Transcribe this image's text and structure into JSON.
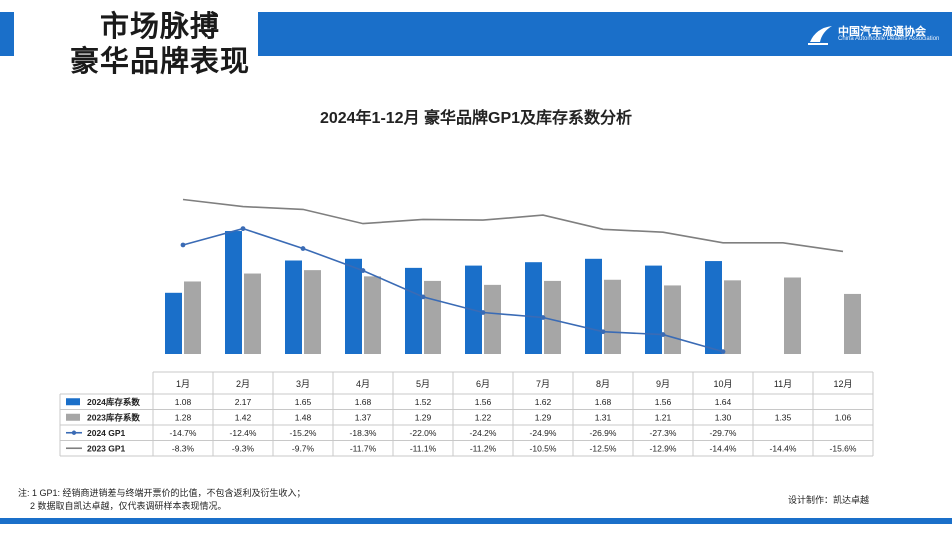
{
  "header": {
    "title_line1": "市场脉搏",
    "title_line2": "豪华品牌表现",
    "logo_cn": "中国汽车流通协会",
    "logo_en": "China Automobile Dealers Association"
  },
  "colors": {
    "accent": "#1a6fc9",
    "bar2024": "#1a6fc9",
    "bar2023": "#a6a6a6",
    "gp2024": "#3a6bb5",
    "gp2023": "#7f7f7f"
  },
  "chart_data": {
    "type": "bar+line",
    "title": "2024年1-12月 豪华品牌GP1及库存系数分析",
    "categories": [
      "1月",
      "2月",
      "3月",
      "4月",
      "5月",
      "6月",
      "7月",
      "8月",
      "9月",
      "10月",
      "11月",
      "12月"
    ],
    "bar_series": [
      {
        "name": "2024库存系数",
        "values": [
          1.08,
          2.17,
          1.65,
          1.68,
          1.52,
          1.56,
          1.62,
          1.68,
          1.56,
          1.64,
          null,
          null
        ],
        "labels": [
          "1.08",
          "2.17",
          "1.65",
          "1.68",
          "1.52",
          "1.56",
          "1.62",
          "1.68",
          "1.56",
          "1.64",
          "",
          ""
        ]
      },
      {
        "name": "2023库存系数",
        "values": [
          1.28,
          1.42,
          1.48,
          1.37,
          1.29,
          1.22,
          1.29,
          1.31,
          1.21,
          1.3,
          1.35,
          1.06
        ],
        "labels": [
          "1.28",
          "1.42",
          "1.48",
          "1.37",
          "1.29",
          "1.22",
          "1.29",
          "1.31",
          "1.21",
          "1.30",
          "1.35",
          "1.06"
        ]
      }
    ],
    "line_series": [
      {
        "name": "2024 GP1",
        "values": [
          -14.7,
          -12.4,
          -15.2,
          -18.3,
          -22.0,
          -24.2,
          -24.9,
          -26.9,
          -27.3,
          -29.7,
          null,
          null
        ],
        "labels": [
          "-14.7%",
          "-12.4%",
          "-15.2%",
          "-18.3%",
          "-22.0%",
          "-24.2%",
          "-24.9%",
          "-26.9%",
          "-27.3%",
          "-29.7%",
          "",
          ""
        ],
        "markers": true
      },
      {
        "name": "2023 GP1",
        "values": [
          -8.3,
          -9.3,
          -9.7,
          -11.7,
          -11.1,
          -11.2,
          -10.5,
          -12.5,
          -12.9,
          -14.4,
          -14.4,
          -15.6
        ],
        "labels": [
          "-8.3%",
          "-9.3%",
          "-9.7%",
          "-11.7%",
          "-11.1%",
          "-11.2%",
          "-10.5%",
          "-12.5%",
          "-12.9%",
          "-14.4%",
          "-14.4%",
          "-15.6%"
        ],
        "markers": false
      }
    ],
    "bar_axis_range": [
      0,
      2.4
    ],
    "line_axis_range": [
      -32,
      -5
    ],
    "legend": "data-table",
    "grid": false
  },
  "footnote": {
    "line1": "注: 1 GP1: 经销商进销差与终端开票价的比值，不包含返利及衍生收入；",
    "line2": "2 数据取自凯达卓越，仅代表调研样本表现情况。"
  },
  "credit": "设计制作：凯达卓越"
}
